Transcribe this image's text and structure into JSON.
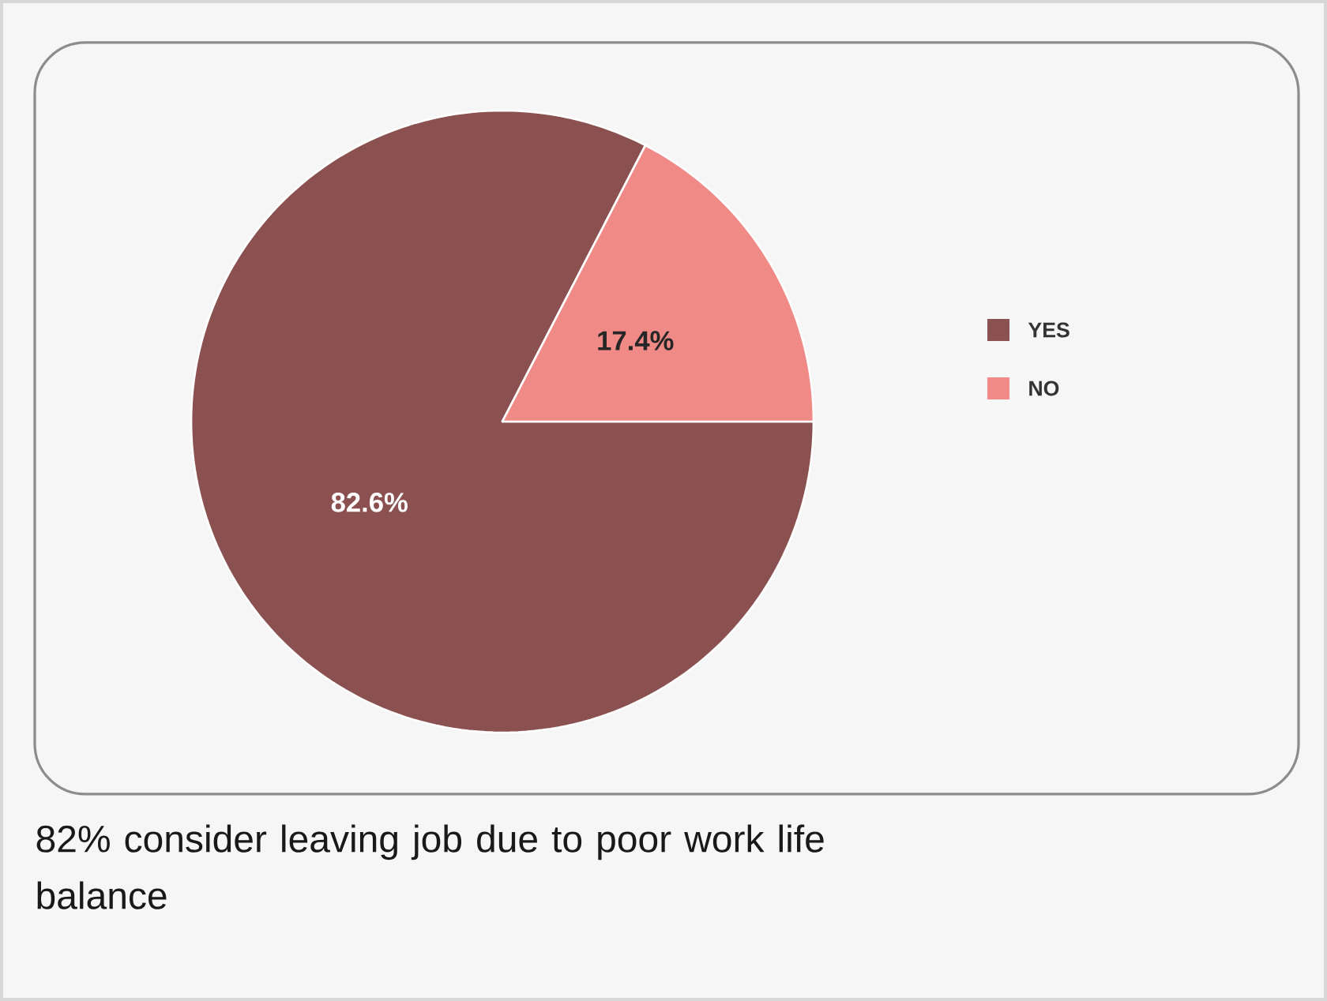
{
  "chart_data": {
    "type": "pie",
    "categories": [
      "YES",
      "NO"
    ],
    "values": [
      82.6,
      17.4
    ],
    "colors": [
      "#8b5050",
      "#f08a87"
    ],
    "value_labels": [
      "82.6%",
      "17.4%"
    ],
    "legend": "right",
    "annotations": [
      "82% consider leaving job due to poor work life balance"
    ]
  }
}
